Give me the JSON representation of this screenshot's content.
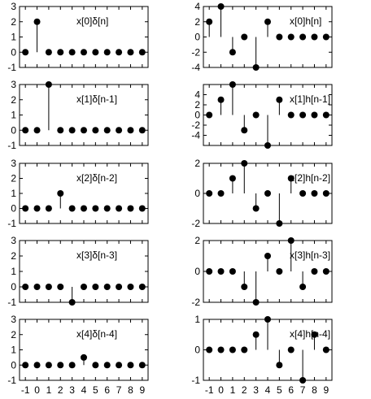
{
  "chart_data": [
    {
      "type": "stem",
      "annotation": "x[0]δ[n]",
      "x": [
        -1,
        0,
        1,
        2,
        3,
        4,
        5,
        6,
        7,
        8,
        9
      ],
      "values": [
        0,
        2,
        0,
        0,
        0,
        0,
        0,
        0,
        0,
        0,
        0
      ],
      "ylim": [
        -1,
        3
      ],
      "yticks": [
        -1,
        0,
        1,
        2,
        3
      ]
    },
    {
      "type": "stem",
      "annotation": "x[0]h[n]",
      "x": [
        -1,
        0,
        1,
        2,
        3,
        4,
        5,
        6,
        7,
        8,
        9
      ],
      "values": [
        2,
        4,
        -2,
        0,
        -4,
        2,
        0,
        0,
        0,
        0,
        0
      ],
      "ylim": [
        -4,
        4
      ],
      "yticks": [
        -4,
        -2,
        0,
        2,
        4
      ]
    },
    {
      "type": "stem",
      "annotation": "x[1]δ[n-1]",
      "x": [
        -1,
        0,
        1,
        2,
        3,
        4,
        5,
        6,
        7,
        8,
        9
      ],
      "values": [
        0,
        0,
        3,
        0,
        0,
        0,
        0,
        0,
        0,
        0,
        0
      ],
      "ylim": [
        -1,
        3
      ],
      "yticks": [
        -1,
        0,
        1,
        2,
        3
      ]
    },
    {
      "type": "stem",
      "annotation": "x[1]h[n-1]",
      "x": [
        -1,
        0,
        1,
        2,
        3,
        4,
        5,
        6,
        7,
        8,
        9
      ],
      "values": [
        0,
        3,
        6,
        -3,
        0,
        -6,
        3,
        0,
        0,
        0,
        0
      ],
      "ylim": [
        -6,
        6
      ],
      "yticks": [
        -4,
        -2,
        0,
        2,
        4
      ]
    },
    {
      "type": "stem",
      "annotation": "x[2]δ[n-2]",
      "x": [
        -1,
        0,
        1,
        2,
        3,
        4,
        5,
        6,
        7,
        8,
        9
      ],
      "values": [
        0,
        0,
        0,
        1,
        0,
        0,
        0,
        0,
        0,
        0,
        0
      ],
      "ylim": [
        -1,
        3
      ],
      "yticks": [
        -1,
        0,
        1,
        2,
        3
      ]
    },
    {
      "type": "stem",
      "annotation": "x[2]h[n-2]",
      "x": [
        -1,
        0,
        1,
        2,
        3,
        4,
        5,
        6,
        7,
        8,
        9
      ],
      "values": [
        0,
        0,
        1,
        2,
        -1,
        0,
        -2,
        1,
        0,
        0,
        0
      ],
      "ylim": [
        -2,
        2
      ],
      "yticks": [
        -2,
        0,
        2
      ]
    },
    {
      "type": "stem",
      "annotation": "x[3]δ[n-3]",
      "x": [
        -1,
        0,
        1,
        2,
        3,
        4,
        5,
        6,
        7,
        8,
        9
      ],
      "values": [
        0,
        0,
        0,
        0,
        -1,
        0,
        0,
        0,
        0,
        0,
        0
      ],
      "ylim": [
        -1,
        3
      ],
      "yticks": [
        -1,
        0,
        1,
        2,
        3
      ]
    },
    {
      "type": "stem",
      "annotation": "x[3]h[n-3]",
      "x": [
        -1,
        0,
        1,
        2,
        3,
        4,
        5,
        6,
        7,
        8,
        9
      ],
      "values": [
        0,
        0,
        0,
        -1,
        -2,
        1,
        0,
        2,
        -1,
        0,
        0
      ],
      "ylim": [
        -2,
        2
      ],
      "yticks": [
        -2,
        0,
        2
      ]
    },
    {
      "type": "stem",
      "annotation": "x[4]δ[n-4]",
      "x": [
        -1,
        0,
        1,
        2,
        3,
        4,
        5,
        6,
        7,
        8,
        9
      ],
      "values": [
        0,
        0,
        0,
        0,
        0,
        0.5,
        0,
        0,
        0,
        0,
        0
      ],
      "ylim": [
        -1,
        3
      ],
      "yticks": [
        -1,
        0,
        1,
        2,
        3
      ],
      "xticks_labeled": true
    },
    {
      "type": "stem",
      "annotation": "x[4]h[n-4]",
      "x": [
        -1,
        0,
        1,
        2,
        3,
        4,
        5,
        6,
        7,
        8,
        9
      ],
      "values": [
        0,
        0,
        0,
        0,
        0.5,
        1,
        -0.5,
        0,
        -1,
        0.5,
        0
      ],
      "ylim": [
        -1,
        1
      ],
      "yticks": [
        -1,
        0,
        1
      ],
      "xticks_labeled": true
    }
  ]
}
